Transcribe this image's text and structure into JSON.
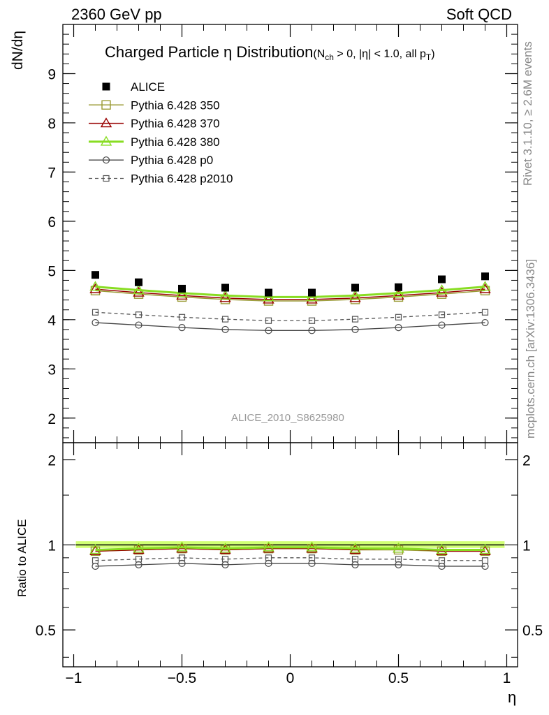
{
  "header": {
    "left": "2360 GeV pp",
    "right": "Soft QCD"
  },
  "side_labels": {
    "rivet": "Rivet 3.1.10, ≥ 2.6M events",
    "mcplots": "mcplots.cern.ch [arXiv:1306.3436]"
  },
  "watermark": "ALICE_2010_S8625980",
  "chart_data": {
    "type": "line",
    "title": "Charged Particle η Distribution",
    "title_cuts": {
      "open": "(N",
      "sub": "ch",
      "rest": " > 0, |η| < 1.0, all p",
      "sub2": "T",
      "close": ")"
    },
    "xlabel": "η",
    "ylabel": "dN/dη",
    "ratio_ylabel": "Ratio to ALICE",
    "xlim": [
      -1.05,
      1.05
    ],
    "ylim": [
      1.5,
      10.0
    ],
    "ratio_ylim": [
      0.37,
      2.3
    ],
    "x_ticks": [
      "−1",
      "−0.5",
      "0",
      "0.5",
      "1"
    ],
    "x_tick_values": [
      -1,
      -0.5,
      0,
      0.5,
      1
    ],
    "y_ticks": [
      2,
      3,
      4,
      5,
      6,
      7,
      8,
      9
    ],
    "ratio_y_ticks": [
      0.5,
      1,
      2
    ],
    "ratio_y_tick_labels": [
      "0.5",
      "1",
      "2"
    ],
    "x": [
      -0.9,
      -0.7,
      -0.5,
      -0.3,
      -0.1,
      0.1,
      0.3,
      0.5,
      0.7,
      0.9
    ],
    "data": {
      "name": "ALICE",
      "values": [
        4.91,
        4.76,
        4.63,
        4.65,
        4.55,
        4.55,
        4.65,
        4.66,
        4.82,
        4.88
      ]
    },
    "series": [
      {
        "name": "Pythia 6.428 350",
        "color": "#999933",
        "marker": "square-open",
        "dashed": false,
        "width": 1.5,
        "values": [
          4.59,
          4.52,
          4.46,
          4.41,
          4.38,
          4.38,
          4.41,
          4.46,
          4.52,
          4.59
        ],
        "ratio": [
          0.95,
          0.96,
          0.97,
          0.96,
          0.97,
          0.97,
          0.96,
          0.96,
          0.95,
          0.95
        ]
      },
      {
        "name": "Pythia 6.428 370",
        "color": "#990000",
        "marker": "triangle-open",
        "dashed": false,
        "width": 1.5,
        "values": [
          4.62,
          4.55,
          4.49,
          4.44,
          4.41,
          4.41,
          4.44,
          4.49,
          4.55,
          4.62
        ],
        "ratio": [
          0.95,
          0.96,
          0.97,
          0.96,
          0.97,
          0.97,
          0.96,
          0.97,
          0.95,
          0.95
        ]
      },
      {
        "name": "Pythia 6.428 380",
        "color": "#88dd22",
        "marker": "triangle-open",
        "dashed": false,
        "width": 3,
        "values": [
          4.67,
          4.6,
          4.54,
          4.49,
          4.46,
          4.46,
          4.49,
          4.54,
          4.6,
          4.67
        ],
        "ratio": [
          0.96,
          0.97,
          0.98,
          0.97,
          0.98,
          0.98,
          0.97,
          0.97,
          0.96,
          0.96
        ]
      },
      {
        "name": "Pythia 6.428 p0",
        "color": "#444444",
        "marker": "circle-open",
        "dashed": false,
        "width": 1.3,
        "values": [
          3.94,
          3.89,
          3.84,
          3.8,
          3.78,
          3.78,
          3.8,
          3.84,
          3.89,
          3.94
        ],
        "ratio": [
          0.84,
          0.85,
          0.86,
          0.85,
          0.86,
          0.86,
          0.85,
          0.85,
          0.84,
          0.84
        ]
      },
      {
        "name": "Pythia 6.428 p2010",
        "color": "#555555",
        "marker": "square-open-small",
        "dashed": true,
        "width": 1.3,
        "values": [
          4.15,
          4.1,
          4.05,
          4.01,
          3.98,
          3.98,
          4.01,
          4.05,
          4.1,
          4.15
        ],
        "ratio": [
          0.88,
          0.89,
          0.9,
          0.89,
          0.9,
          0.9,
          0.89,
          0.89,
          0.88,
          0.88
        ]
      }
    ],
    "ratio_band_color": "#ccff66"
  }
}
